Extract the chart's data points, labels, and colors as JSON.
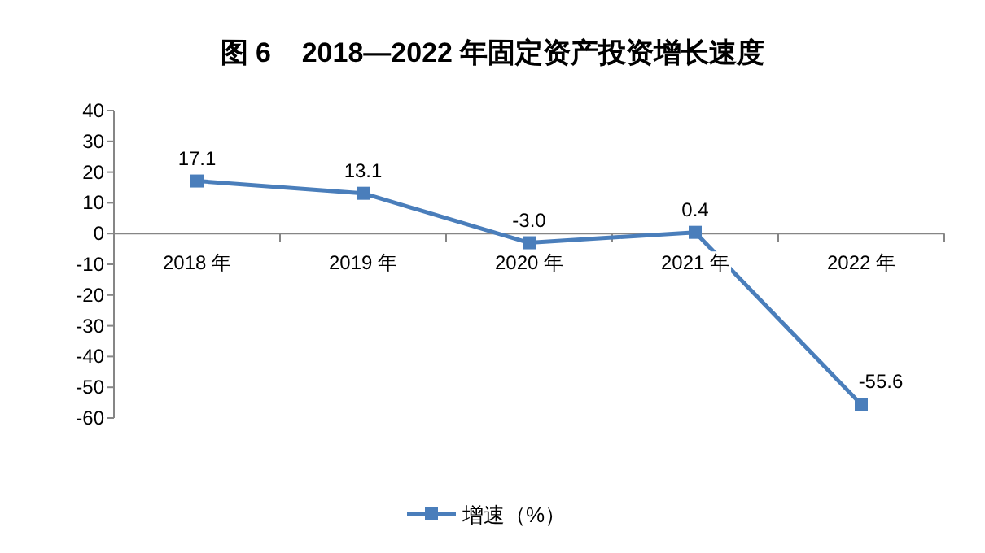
{
  "chart_data": {
    "type": "line",
    "title": "图 6    2018—2022 年固定资产投资增长速度",
    "categories": [
      "2018 年",
      "2019 年",
      "2020 年",
      "2021 年",
      "2022 年"
    ],
    "series": [
      {
        "name": "增速（%）",
        "color": "#4a7ebb",
        "values": [
          17.1,
          13.1,
          -3.0,
          0.4,
          -55.6
        ],
        "value_labels": [
          "17.1",
          "13.1",
          "-3.0",
          "0.4",
          "-55.6"
        ]
      }
    ],
    "ylim": [
      -60,
      40
    ],
    "yticks": [
      -60,
      -50,
      -40,
      -30,
      -20,
      -10,
      0,
      10,
      20,
      30,
      40
    ],
    "marker": "square",
    "line_style": "solid",
    "legend": "bottom",
    "grid": false
  }
}
